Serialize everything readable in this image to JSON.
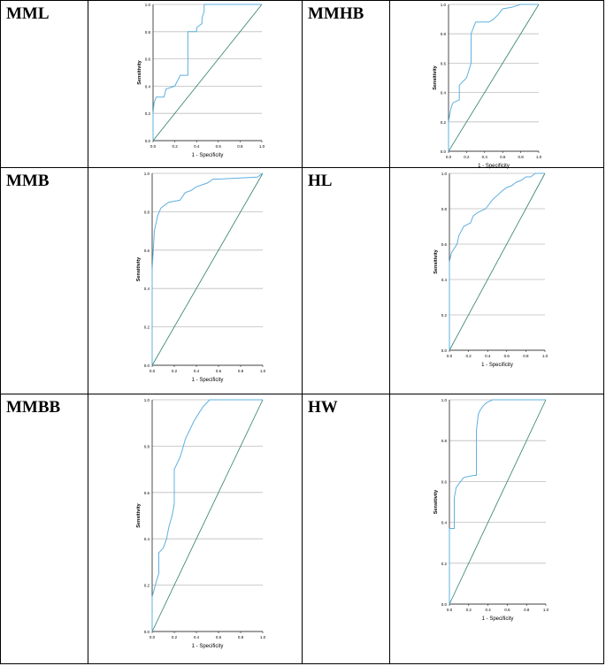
{
  "colors": {
    "roc_curve": "#5fb0e0",
    "reference_line": "#2e7d6b",
    "gridline": "#bdbdbd",
    "axis": "#000000"
  },
  "chart_data": [
    {
      "panel": "MML",
      "type": "line",
      "xlabel": "1 - Specificity",
      "ylabel": "Sensitivity",
      "xlim": [
        0,
        1
      ],
      "ylim": [
        0,
        1
      ],
      "x_ticks": [
        "0.0",
        "0.2",
        "0.4",
        "0.6",
        "0.8",
        "1.0"
      ],
      "y_ticks": [
        "0.0",
        "0.2",
        "0.4",
        "0.6",
        "0.8",
        "1.0"
      ],
      "grid": "horizontal",
      "roc": {
        "x": [
          0,
          0,
          0.01,
          0.03,
          0.1,
          0.12,
          0.2,
          0.25,
          0.32,
          0.32,
          0.4,
          0.4,
          0.45,
          0.45,
          0.47,
          0.47,
          1
        ],
        "y": [
          0,
          0.2,
          0.28,
          0.32,
          0.32,
          0.38,
          0.4,
          0.48,
          0.48,
          0.8,
          0.8,
          0.83,
          0.86,
          0.9,
          0.95,
          1,
          1
        ]
      },
      "reference": {
        "x": [
          0,
          1
        ],
        "y": [
          0,
          1
        ]
      }
    },
    {
      "panel": "MMHB",
      "type": "line",
      "xlabel": "1 - Specificity",
      "ylabel": "Sensitivity",
      "xlim": [
        0,
        1
      ],
      "ylim": [
        0,
        1
      ],
      "x_ticks": [
        "0.0",
        "0.2",
        "0.4",
        "0.6",
        "0.8",
        "1.0"
      ],
      "y_ticks": [
        "0.0",
        "0.2",
        "0.4",
        "0.6",
        "0.8",
        "1.0"
      ],
      "grid": "horizontal",
      "roc": {
        "x": [
          0,
          0,
          0.02,
          0.03,
          0.05,
          0.12,
          0.12,
          0.2,
          0.25,
          0.25,
          0.3,
          0.45,
          0.5,
          0.55,
          0.6,
          0.7,
          0.8,
          0.9,
          1
        ],
        "y": [
          0,
          0.2,
          0.27,
          0.3,
          0.33,
          0.35,
          0.45,
          0.5,
          0.6,
          0.8,
          0.88,
          0.88,
          0.9,
          0.93,
          0.97,
          0.98,
          1,
          1,
          1
        ]
      },
      "reference": {
        "x": [
          0,
          1
        ],
        "y": [
          0,
          1
        ]
      }
    },
    {
      "panel": "MMB",
      "type": "line",
      "xlabel": "1 - Specificity",
      "ylabel": "Sensitivity",
      "xlim": [
        0,
        1
      ],
      "ylim": [
        0,
        1
      ],
      "x_ticks": [
        "0.0",
        "0.2",
        "0.4",
        "0.6",
        "0.8",
        "1.0"
      ],
      "y_ticks": [
        "0.0",
        "0.2",
        "0.4",
        "0.6",
        "0.8",
        "1.0"
      ],
      "grid": "horizontal",
      "roc": {
        "x": [
          0,
          0,
          0.02,
          0.05,
          0.08,
          0.15,
          0.25,
          0.3,
          0.35,
          0.4,
          0.5,
          0.55,
          0.6,
          0.95,
          1
        ],
        "y": [
          0,
          0.5,
          0.7,
          0.78,
          0.82,
          0.85,
          0.86,
          0.9,
          0.91,
          0.93,
          0.95,
          0.97,
          0.97,
          0.98,
          1
        ]
      },
      "reference": {
        "x": [
          0,
          1
        ],
        "y": [
          0,
          1
        ]
      }
    },
    {
      "panel": "HL",
      "type": "line",
      "xlabel": "1 - Specificity",
      "ylabel": "Sensitivity",
      "xlim": [
        0,
        1
      ],
      "ylim": [
        0,
        1
      ],
      "x_ticks": [
        "0.0",
        "0.2",
        "0.4",
        "0.6",
        "0.8",
        "1.0"
      ],
      "y_ticks": [
        "0.0",
        "0.2",
        "0.4",
        "0.6",
        "0.8",
        "1.0"
      ],
      "grid": "horizontal",
      "roc": {
        "x": [
          0,
          0,
          0.02,
          0.08,
          0.1,
          0.15,
          0.22,
          0.25,
          0.3,
          0.38,
          0.45,
          0.55,
          0.6,
          0.65,
          0.7,
          0.75,
          0.8,
          0.85,
          0.9,
          1
        ],
        "y": [
          0,
          0.5,
          0.55,
          0.6,
          0.65,
          0.7,
          0.72,
          0.76,
          0.78,
          0.8,
          0.85,
          0.9,
          0.92,
          0.93,
          0.95,
          0.96,
          0.98,
          0.98,
          1,
          1
        ]
      },
      "reference": {
        "x": [
          0,
          1
        ],
        "y": [
          0,
          1
        ]
      }
    },
    {
      "panel": "MMBB",
      "type": "line",
      "xlabel": "1 - Specificity",
      "ylabel": "Sensitivity",
      "xlim": [
        0,
        1
      ],
      "ylim": [
        0,
        1
      ],
      "x_ticks": [
        "0.0",
        "0.2",
        "0.4",
        "0.6",
        "0.8",
        "1.0"
      ],
      "y_ticks": [
        "0.0",
        "0.2",
        "0.4",
        "0.6",
        "0.8",
        "1.0"
      ],
      "grid": "horizontal",
      "roc": {
        "x": [
          0,
          0,
          0.04,
          0.06,
          0.06,
          0.1,
          0.13,
          0.15,
          0.18,
          0.2,
          0.2,
          0.25,
          0.27,
          0.3,
          0.35,
          0.38,
          0.42,
          0.46,
          0.5,
          0.52,
          1
        ],
        "y": [
          0,
          0.15,
          0.22,
          0.25,
          0.34,
          0.36,
          0.4,
          0.45,
          0.5,
          0.55,
          0.7,
          0.75,
          0.78,
          0.83,
          0.88,
          0.91,
          0.94,
          0.97,
          0.99,
          1,
          1
        ]
      },
      "reference": {
        "x": [
          0,
          1
        ],
        "y": [
          0,
          1
        ]
      }
    },
    {
      "panel": "HW",
      "type": "line",
      "xlabel": "1 - Specificity",
      "ylabel": "Sensitivity",
      "xlim": [
        0,
        1
      ],
      "ylim": [
        0,
        1
      ],
      "x_ticks": [
        "0.0",
        "0.2",
        "0.4",
        "0.6",
        "0.8",
        "1.0"
      ],
      "y_ticks": [
        "0.0",
        "0.2",
        "0.4",
        "0.6",
        "0.8",
        "1.0"
      ],
      "grid": "horizontal",
      "roc": {
        "x": [
          0,
          0,
          0.05,
          0.05,
          0.07,
          0.1,
          0.15,
          0.25,
          0.28,
          0.28,
          0.3,
          0.32,
          0.35,
          0.37,
          0.4,
          0.45,
          1
        ],
        "y": [
          0,
          0.37,
          0.37,
          0.52,
          0.57,
          0.59,
          0.62,
          0.63,
          0.63,
          0.85,
          0.93,
          0.95,
          0.97,
          0.98,
          0.99,
          1,
          1
        ]
      },
      "reference": {
        "x": [
          0,
          1
        ],
        "y": [
          0,
          1
        ]
      }
    }
  ]
}
